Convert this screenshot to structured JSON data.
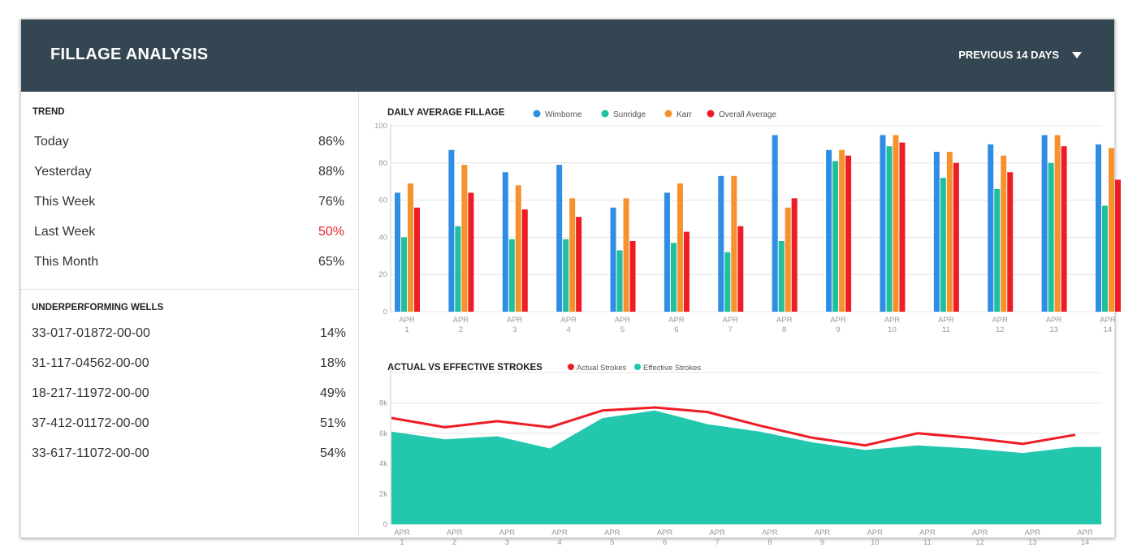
{
  "header": {
    "title": "FILLAGE ANALYSIS",
    "range_label": "PREVIOUS 14 DAYS"
  },
  "trend": {
    "title": "TREND",
    "rows": [
      {
        "label": "Today",
        "value": "86%"
      },
      {
        "label": "Yesterday",
        "value": "88%"
      },
      {
        "label": "This Week",
        "value": "76%"
      },
      {
        "label": "Last Week",
        "value": "50%"
      },
      {
        "label": "This Month",
        "value": "65%"
      }
    ]
  },
  "wells": {
    "title": "UNDERPERFORMING WELLS",
    "rows": [
      {
        "label": "33-017-01872-00-00",
        "value": "14%"
      },
      {
        "label": "31-117-04562-00-00",
        "value": "18%"
      },
      {
        "label": "18-217-11972-00-00",
        "value": "49%"
      },
      {
        "label": "37-412-01172-00-00",
        "value": "51%"
      },
      {
        "label": "33-617-11072-00-00",
        "value": "54%"
      }
    ]
  },
  "colors": {
    "header_bg": "#344651",
    "wimborne": "#2e8de4",
    "sunridge": "#1fbf9f",
    "karr": "#f6922b",
    "overall": "#ee1c24",
    "area": "#22c7ae",
    "line": "#ee1c24",
    "warning": "#e8262b"
  },
  "chart_data": [
    {
      "type": "bar",
      "title": "DAILY AVERAGE FILLAGE",
      "categories": [
        "APR 1",
        "APR 2",
        "APR 3",
        "APR 4",
        "APR 5",
        "APR 6",
        "APR 7",
        "APR 8",
        "APR 9",
        "APR 10",
        "APR 11",
        "APR 12",
        "APR 13",
        "APR 14"
      ],
      "ylim": [
        0,
        100
      ],
      "yticks": [
        0,
        20,
        40,
        60,
        80,
        100
      ],
      "grid": true,
      "legend": "top",
      "series": [
        {
          "name": "Wimborne",
          "values": [
            64,
            87,
            75,
            79,
            56,
            64,
            73,
            95,
            87,
            95,
            86,
            90,
            95,
            90
          ]
        },
        {
          "name": "Sunridge",
          "values": [
            40,
            46,
            39,
            39,
            33,
            37,
            32,
            38,
            81,
            89,
            72,
            66,
            80,
            57
          ]
        },
        {
          "name": "Karr",
          "values": [
            69,
            79,
            68,
            61,
            61,
            69,
            73,
            56,
            87,
            95,
            86,
            84,
            95,
            88
          ]
        },
        {
          "name": "Overall Average",
          "values": [
            56,
            64,
            55,
            51,
            38,
            43,
            46,
            61,
            84,
            91,
            80,
            75,
            89,
            71
          ]
        }
      ]
    },
    {
      "type": "area",
      "title": "ACTUAL VS EFFECTIVE STROKES",
      "categories": [
        "APR 1",
        "APR 2",
        "APR 3",
        "APR 4",
        "APR 5",
        "APR 6",
        "APR 7",
        "APR 8",
        "APR 9",
        "APR 10",
        "APR 11",
        "APR 12",
        "APR 13",
        "APR 14"
      ],
      "ylim": [
        0,
        10000
      ],
      "yticks": [
        "0",
        "2k",
        "4k",
        "6k",
        "8k"
      ],
      "grid": true,
      "legend": "top",
      "series": [
        {
          "name": "Actual Strokes",
          "style": "line",
          "values": [
            7000,
            6400,
            6800,
            6400,
            7500,
            7700,
            7400,
            6500,
            5700,
            5200,
            6000,
            5700,
            5300,
            5900
          ]
        },
        {
          "name": "Effective Strokes",
          "style": "area",
          "values": [
            6100,
            5600,
            5800,
            5000,
            7000,
            7500,
            6600,
            6100,
            5400,
            4900,
            5200,
            5000,
            4700,
            5100
          ]
        }
      ]
    }
  ]
}
